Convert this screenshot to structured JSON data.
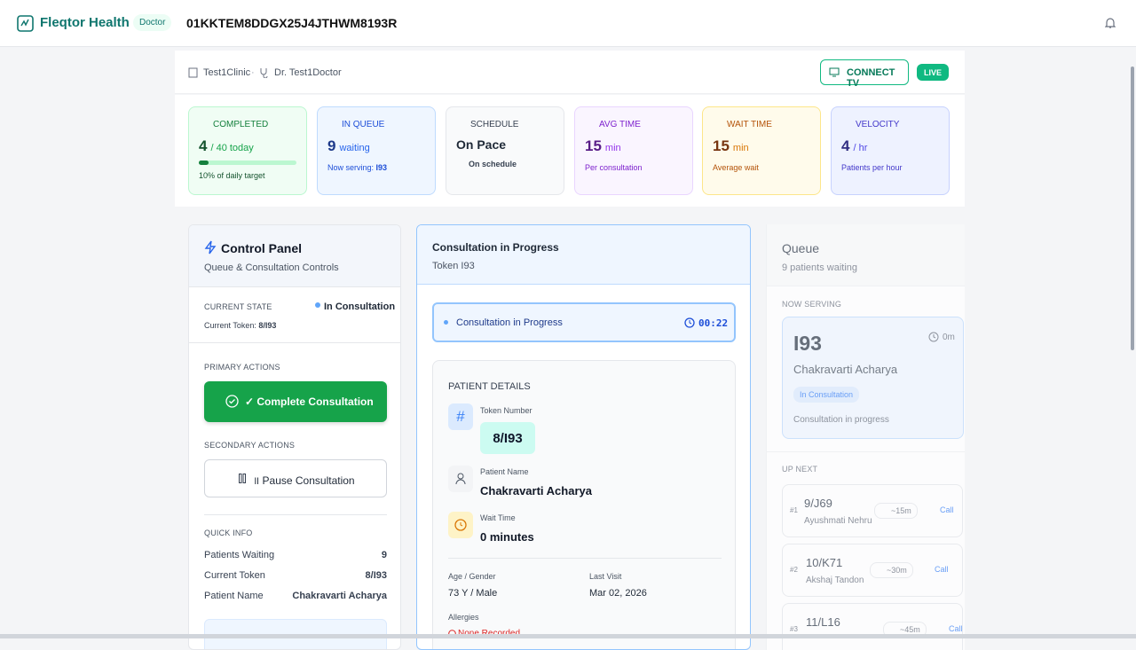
{
  "header": {
    "brand": "Fleqtor Health",
    "role": "Doctor",
    "session_id": "01KKTEM8DDGX25J4JTHWM8193R"
  },
  "context": {
    "clinic": "Test1Clinic",
    "separator": "·",
    "doctor": "Dr. Test1Doctor",
    "connect": "CONNECT TV",
    "live": "LIVE"
  },
  "stats": [
    {
      "label": "COMPLETED",
      "value": "4",
      "unit": "/ 40 today",
      "note": "10% of daily target"
    },
    {
      "label": "IN QUEUE",
      "value": "9",
      "unit": "waiting",
      "note": "Now serving:",
      "note_value": "I93"
    },
    {
      "label": "SCHEDULE",
      "value": "On Pace",
      "note": "On schedule"
    },
    {
      "label": "AVG TIME",
      "value": "15",
      "unit": "min",
      "note": "Per consultation"
    },
    {
      "label": "WAIT TIME",
      "value": "15",
      "unit": "min",
      "note": "Average wait"
    },
    {
      "label": "VELOCITY",
      "value": "4",
      "unit": "/ hr",
      "note": "Patients per hour"
    }
  ],
  "control": {
    "title": "Control Panel",
    "subtitle": "Queue & Consultation Controls",
    "state_label": "CURRENT STATE",
    "state": "In Consultation",
    "token_label": "Current Token:",
    "token": "8/I93",
    "primary_label": "PRIMARY ACTIONS",
    "complete_button": "✓ Complete Consultation",
    "secondary_label": "SECONDARY ACTIONS",
    "pause_button": "॥ Pause Consultation",
    "quick_label": "QUICK INFO",
    "quick": [
      [
        "Patients Waiting",
        "9"
      ],
      [
        "Current Token",
        "8/I93"
      ],
      [
        "Patient Name",
        "Chakravarti Acharya"
      ]
    ]
  },
  "consultation": {
    "title": "Consultation in Progress",
    "token": "Token I93",
    "banner": "Consultation in Progress",
    "timer": "00:22",
    "details_label": "PATIENT DETAILS",
    "token_number_label": "Token Number",
    "token_number": "8/I93",
    "name_label": "Patient Name",
    "name": "Chakravarti Acharya",
    "wait_label": "Wait Time",
    "wait": "0 minutes",
    "age_label": "Age / Gender",
    "age": "73 Y / Male",
    "visit_label": "Last Visit",
    "visit": "Mar 02, 2026",
    "allergies_label": "Allergies",
    "allergies": "None Recorded"
  },
  "queue": {
    "title": "Queue",
    "subtitle": "9 patients waiting",
    "now_label": "NOW SERVING",
    "now_token": "I93",
    "now_time": "0m",
    "now_name": "Chakravarti Acharya",
    "now_badge": "In Consultation",
    "now_status": "Consultation in progress",
    "next_label": "UP NEXT",
    "items": [
      {
        "pos": "#1",
        "token": "9/J69",
        "name": "Ayushmati Nehru",
        "eta": "~15m",
        "call": "Call"
      },
      {
        "pos": "#2",
        "token": "10/K71",
        "name": "Akshaj Tandon",
        "eta": "~30m",
        "call": "Call"
      },
      {
        "pos": "#3",
        "token": "11/L16",
        "eta": "~45m",
        "call": "Call"
      }
    ]
  }
}
